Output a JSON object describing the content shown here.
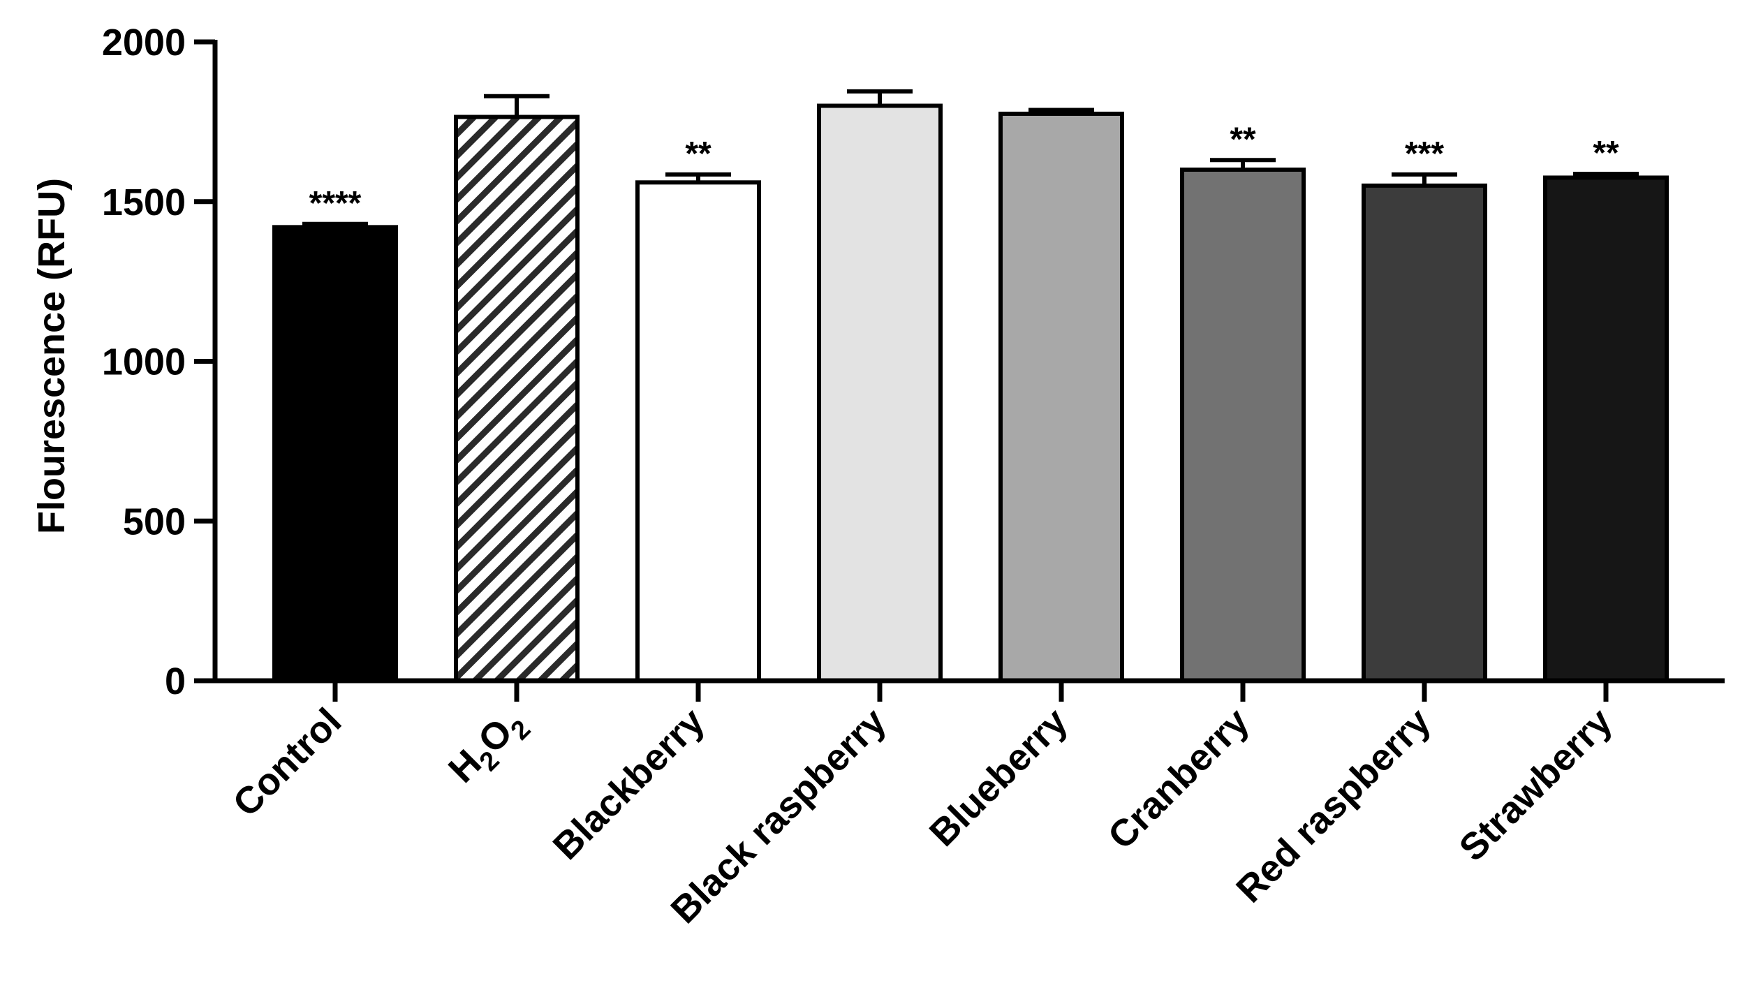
{
  "chart_data": {
    "type": "bar",
    "title": "",
    "xlabel": "",
    "ylabel": "Flourescence (RFU)",
    "ylim": [
      0,
      2000
    ],
    "yticks": [
      0,
      500,
      1000,
      1500,
      2000
    ],
    "grid": false,
    "legend": "none",
    "categories": [
      "Control",
      "H2O2",
      "Blackberry",
      "Black raspberry",
      "Blueberry",
      "Cranberry",
      "Red raspberry",
      "Strawberry"
    ],
    "values": [
      1420,
      1765,
      1560,
      1800,
      1775,
      1600,
      1550,
      1575
    ],
    "errors": [
      10,
      65,
      25,
      45,
      12,
      30,
      35,
      12
    ],
    "significance": [
      "****",
      "",
      "**",
      "",
      "",
      "**",
      "***",
      "**"
    ],
    "bar_fills": [
      "#000000",
      "hatch",
      "#ffffff",
      "#e3e3e3",
      "#a8a8a8",
      "#727272",
      "#3c3c3c",
      "#161616"
    ]
  }
}
